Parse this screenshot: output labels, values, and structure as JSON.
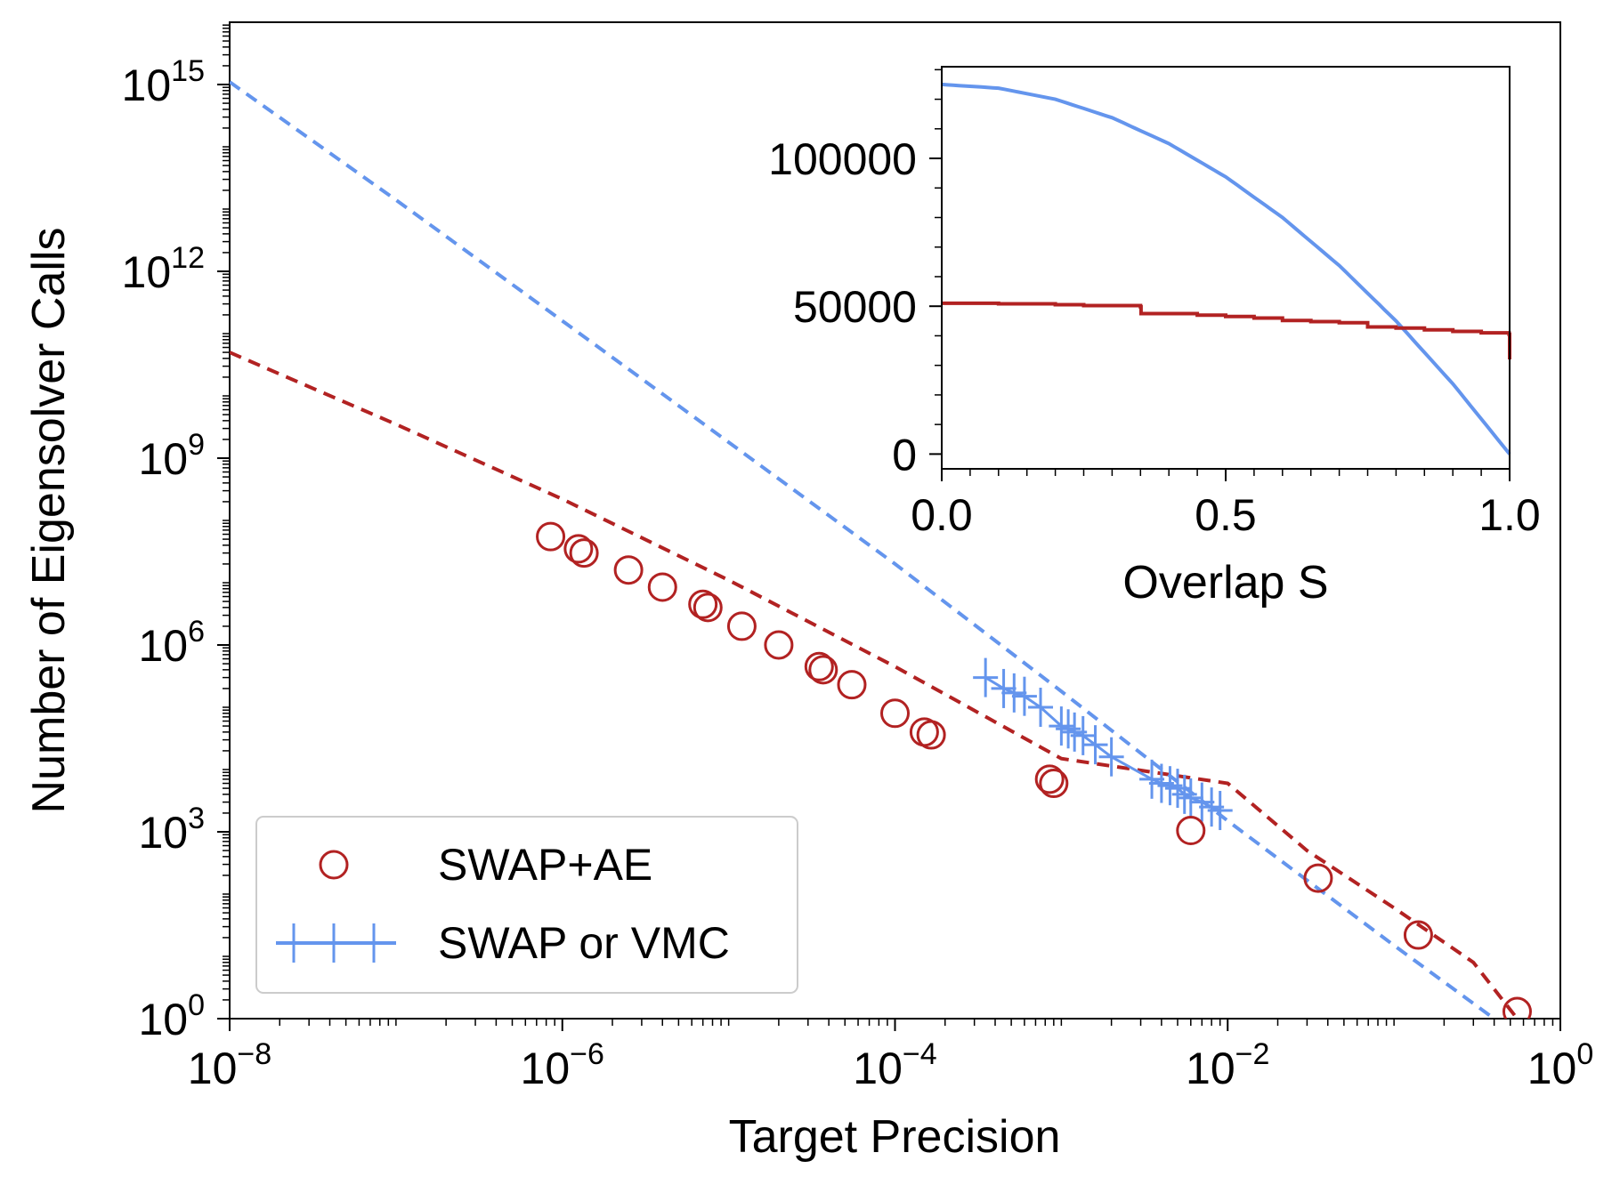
{
  "chart_data": [
    {
      "type": "line",
      "scale": "log-log",
      "xlabel": "Target Precision",
      "ylabel": "Number of Eigensolver Calls",
      "xlim": [
        1e-08,
        1
      ],
      "ylim": [
        1,
        1e+16
      ],
      "x_tick_labels": [
        {
          "base": "10",
          "exp": "−8"
        },
        {
          "base": "10",
          "exp": "−6"
        },
        {
          "base": "10",
          "exp": "−4"
        },
        {
          "base": "10",
          "exp": "−2"
        },
        {
          "base": "10",
          "exp": "0"
        }
      ],
      "y_tick_labels": [
        {
          "base": "10",
          "exp": "0"
        },
        {
          "base": "10",
          "exp": "3"
        },
        {
          "base": "10",
          "exp": "6"
        },
        {
          "base": "10",
          "exp": "9"
        },
        {
          "base": "10",
          "exp": "12"
        },
        {
          "base": "10",
          "exp": "15"
        }
      ],
      "legend": {
        "position": "lower-left",
        "entries": [
          {
            "label": "SWAP+AE",
            "color": "#b22222",
            "marker": "circle"
          },
          {
            "label": "SWAP or VMC",
            "color": "#6495ed",
            "marker": "plus-line"
          }
        ]
      },
      "series": [
        {
          "name": "SWAP+AE fit",
          "style": "dashed",
          "color": "#b22222",
          "x": [
            1e-08,
            1e-07,
            1e-06,
            1e-05,
            0.0001,
            0.001,
            0.01,
            0.03,
            0.1,
            0.3,
            0.55
          ],
          "y": [
            50000000000.0,
            3500000000.0,
            220000000.0,
            11000000.0,
            450000.0,
            15000.0,
            6000,
            500,
            60,
            8,
            1
          ]
        },
        {
          "name": "SWAP or VMC fit",
          "style": "dashed",
          "color": "#6495ed",
          "x": [
            1e-08,
            1e-07,
            1e-06,
            1e-05,
            0.0001,
            0.001,
            0.01,
            0.1,
            0.4
          ],
          "y": [
            1100000000000000.0,
            14000000000000.0,
            160000000000.0,
            1800000000.0,
            20000000.0,
            180000.0,
            1500,
            15,
            1
          ]
        },
        {
          "name": "SWAP+AE",
          "style": "markers",
          "color": "#b22222",
          "x": [
            8.5e-07,
            1.25e-06,
            1.35e-06,
            2.5e-06,
            4e-06,
            7e-06,
            7.5e-06,
            1.2e-05,
            2e-05,
            3.5e-05,
            3.7e-05,
            5.5e-05,
            0.0001,
            0.00015,
            0.000165,
            0.00085,
            0.0009,
            0.006,
            0.035,
            0.14,
            0.55
          ],
          "y": [
            55000000.0,
            35000000.0,
            30000000.0,
            16000000.0,
            8500000.0,
            4500000.0,
            4000000.0,
            2000000.0,
            1000000.0,
            450000.0,
            400000.0,
            230000.0,
            80000.0,
            40000.0,
            36000.0,
            7000.0,
            6000.0,
            1050.0,
            180,
            22,
            1.3
          ]
        },
        {
          "name": "SWAP or VMC",
          "style": "markers",
          "color": "#6495ed",
          "x": [
            0.00035,
            0.00045,
            0.00052,
            0.0006,
            0.00075,
            0.001,
            0.0011,
            0.0012,
            0.00135,
            0.0016,
            0.002,
            0.0035,
            0.004,
            0.0045,
            0.005,
            0.0055,
            0.006,
            0.007,
            0.008,
            0.009
          ],
          "y": [
            300000.0,
            200000.0,
            170000.0,
            150000.0,
            100000.0,
            50000.0,
            45000.0,
            40000.0,
            35000.0,
            25000.0,
            16000.0,
            7000.0,
            6000.0,
            5500.0,
            5000.0,
            4000.0,
            3500.0,
            3000.0,
            2500.0,
            2200.0
          ]
        }
      ]
    },
    {
      "type": "line",
      "role": "inset",
      "xlabel": "Overlap S",
      "ylabel": "",
      "xlim": [
        0,
        1
      ],
      "ylim": [
        -5000,
        131000
      ],
      "x_tick_labels": [
        "0.0",
        "0.5",
        "1.0"
      ],
      "y_tick_labels": [
        "0",
        "50000",
        "100000"
      ],
      "series": [
        {
          "name": "SWAP or VMC",
          "color": "#6495ed",
          "x": [
            0,
            0.1,
            0.2,
            0.3,
            0.4,
            0.5,
            0.6,
            0.7,
            0.8,
            0.9,
            1.0
          ],
          "y": [
            125000,
            123750,
            120000,
            113750,
            105000,
            93750,
            80000,
            63750,
            45000,
            23750,
            0
          ]
        },
        {
          "name": "SWAP+AE",
          "color": "#b22222",
          "style": "step",
          "x": [
            0,
            0.1,
            0.2,
            0.25,
            0.35,
            0.351,
            0.45,
            0.5,
            0.55,
            0.6,
            0.65,
            0.7,
            0.75,
            0.8,
            0.85,
            0.9,
            0.95,
            0.999,
            1.0
          ],
          "y": [
            51000,
            50800,
            50500,
            50200,
            49800,
            47500,
            47000,
            46500,
            46000,
            45200,
            44800,
            44400,
            43000,
            42600,
            42000,
            41500,
            41000,
            40500,
            32000
          ]
        }
      ]
    }
  ]
}
